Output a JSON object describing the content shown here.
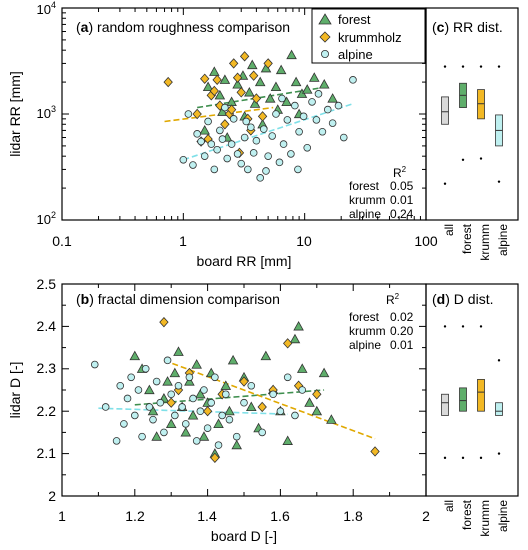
{
  "colors": {
    "forest": "#5fae6b",
    "krummholz": "#f2b824",
    "alpine": "#bff0f0",
    "all": "#d9d9d9",
    "edge": "#333333"
  },
  "top": {
    "title_letter": "a",
    "title_text": " random roughness comparison",
    "xlabel": "board RR [mm]",
    "ylabel": "lidar RR [mm]",
    "x_ticks": [
      "0.1",
      "1",
      "10",
      "100"
    ],
    "legend": [
      "forest",
      "krummholz",
      "alpine"
    ],
    "r2_title": "R",
    "r2_title_sup": "2",
    "r2_rows": [
      {
        "name": "forest",
        "value": "0.05"
      },
      {
        "name": "krumm",
        "value": "0.01"
      },
      {
        "name": "alpine",
        "value": "0.24"
      }
    ],
    "dist_letter": "c",
    "dist_text": " RR dist."
  },
  "bottom": {
    "title_letter": "b",
    "title_text": " fractal dimension comparison",
    "xlabel": "board D [-]",
    "ylabel": "lidar D [-]",
    "x_ticks": [
      "1",
      "1.2",
      "1.4",
      "1.6",
      "1.8",
      "2"
    ],
    "y_ticks": [
      "2",
      "2.1",
      "2.2",
      "2.3",
      "2.4",
      "2.5"
    ],
    "r2_title": "R",
    "r2_title_sup": "2",
    "r2_rows": [
      {
        "name": "forest",
        "value": "0.02"
      },
      {
        "name": "krumm",
        "value": "0.20"
      },
      {
        "name": "alpine",
        "value": "0.01"
      }
    ],
    "dist_letter": "d",
    "dist_text": " D dist."
  },
  "dist_categories": [
    "all",
    "forest",
    "krumm",
    "alpine"
  ],
  "chart_data": [
    {
      "type": "scatter",
      "title": "(a) random roughness comparison",
      "xlabel": "board RR [mm]",
      "ylabel": "lidar RR [mm]",
      "xscale": "log",
      "yscale": "log",
      "xlim": [
        0.1,
        100
      ],
      "ylim": [
        100,
        10000
      ],
      "legend_position": "top-right",
      "series": [
        {
          "name": "forest",
          "marker": "triangle",
          "points": [
            [
              1.6,
              1800
            ],
            [
              1.8,
              2500
            ],
            [
              2.0,
              1500
            ],
            [
              2.2,
              2100
            ],
            [
              2.5,
              1300
            ],
            [
              2.8,
              1900
            ],
            [
              3.1,
              2300
            ],
            [
              3.5,
              1600
            ],
            [
              3.9,
              1250
            ],
            [
              4.3,
              2000
            ],
            [
              4.8,
              2700
            ],
            [
              5.2,
              1400
            ],
            [
              5.8,
              1800
            ],
            [
              6.4,
              2600
            ],
            [
              7.1,
              1300
            ],
            [
              7.8,
              3600
            ],
            [
              8.5,
              2000
            ],
            [
              9.5,
              1550
            ],
            [
              10.5,
              1700
            ],
            [
              12.0,
              2200
            ],
            [
              14.5,
              1900
            ],
            [
              17.0,
              1400
            ],
            [
              2.1,
              1050
            ],
            [
              3.2,
              950
            ],
            [
              4.5,
              800
            ],
            [
              6.0,
              1100
            ],
            [
              1.5,
              700
            ],
            [
              2.3,
              600
            ],
            [
              9.0,
              1000
            ],
            [
              3.7,
              2900
            ]
          ],
          "trend": [
            [
              1.3,
              1150
            ],
            [
              13.0,
              1750
            ]
          ]
        },
        {
          "name": "krummholz",
          "marker": "diamond",
          "points": [
            [
              0.75,
              2000
            ],
            [
              1.3,
              1000
            ],
            [
              1.5,
              2150
            ],
            [
              1.6,
              580
            ],
            [
              1.7,
              1500
            ],
            [
              1.8,
              1650
            ],
            [
              1.9,
              2100
            ],
            [
              2.0,
              1200
            ],
            [
              2.2,
              800
            ],
            [
              2.4,
              1000
            ],
            [
              2.6,
              3000
            ],
            [
              2.8,
              2200
            ],
            [
              3.0,
              1600
            ],
            [
              3.2,
              3500
            ],
            [
              3.4,
              900
            ],
            [
              3.6,
              700
            ],
            [
              3.8,
              2300
            ],
            [
              4.0,
              1400
            ],
            [
              4.5,
              950
            ],
            [
              5.0,
              3000
            ],
            [
              1.4,
              550
            ],
            [
              2.9,
              430
            ],
            [
              2.5,
              1100
            ]
          ],
          "trend": [
            [
              0.7,
              850
            ],
            [
              5.5,
              1150
            ]
          ]
        },
        {
          "name": "alpine",
          "marker": "circle",
          "points": [
            [
              1.0,
              370
            ],
            [
              1.1,
              1000
            ],
            [
              1.2,
              330
            ],
            [
              1.3,
              650
            ],
            [
              1.4,
              550
            ],
            [
              1.5,
              400
            ],
            [
              1.6,
              850
            ],
            [
              1.7,
              520
            ],
            [
              1.8,
              300
            ],
            [
              1.9,
              460
            ],
            [
              2.0,
              700
            ],
            [
              2.1,
              580
            ],
            [
              2.3,
              380
            ],
            [
              2.5,
              520
            ],
            [
              2.6,
              900
            ],
            [
              2.8,
              420
            ],
            [
              3.0,
              340
            ],
            [
              3.2,
              600
            ],
            [
              3.4,
              300
            ],
            [
              3.6,
              750
            ],
            [
              3.8,
              430
            ],
            [
              4.0,
              560
            ],
            [
              4.3,
              250
            ],
            [
              4.6,
              720
            ],
            [
              5.0,
              400
            ],
            [
              5.4,
              620
            ],
            [
              5.8,
              1000
            ],
            [
              6.2,
              350
            ],
            [
              6.7,
              520
            ],
            [
              7.2,
              880
            ],
            [
              7.7,
              420
            ],
            [
              8.3,
              1200
            ],
            [
              9.0,
              680
            ],
            [
              9.8,
              950
            ],
            [
              10.5,
              480
            ],
            [
              11.5,
              1300
            ],
            [
              12.5,
              880
            ],
            [
              14.0,
              680
            ],
            [
              15.5,
              1100
            ],
            [
              17.0,
              820
            ],
            [
              19.0,
              1200
            ],
            [
              21.0,
              600
            ],
            [
              25.0,
              2100
            ],
            [
              4.8,
              290
            ],
            [
              3.3,
              850
            ],
            [
              2.2,
              1150
            ],
            [
              6.5,
              1400
            ],
            [
              8.8,
              300
            ],
            [
              13.0,
              1550
            ]
          ],
          "trend": [
            [
              1.0,
              370
            ],
            [
              25.0,
              1250
            ]
          ]
        }
      ]
    },
    {
      "type": "scatter",
      "title": "(b) fractal dimension comparison",
      "xlabel": "board D [-]",
      "ylabel": "lidar D [-]",
      "xlim": [
        1,
        2
      ],
      "ylim": [
        2,
        2.5
      ],
      "series": [
        {
          "name": "forest",
          "marker": "triangle",
          "points": [
            [
              1.2,
              2.33
            ],
            [
              1.22,
              2.3
            ],
            [
              1.24,
              2.25
            ],
            [
              1.25,
              2.2
            ],
            [
              1.26,
              2.14
            ],
            [
              1.28,
              2.23
            ],
            [
              1.29,
              2.27
            ],
            [
              1.3,
              2.17
            ],
            [
              1.31,
              2.29
            ],
            [
              1.32,
              2.34
            ],
            [
              1.33,
              2.21
            ],
            [
              1.34,
              2.15
            ],
            [
              1.35,
              2.27
            ],
            [
              1.36,
              2.19
            ],
            [
              1.37,
              2.31
            ],
            [
              1.38,
              2.24
            ],
            [
              1.39,
              2.14
            ],
            [
              1.4,
              2.22
            ],
            [
              1.41,
              2.29
            ],
            [
              1.42,
              2.1
            ],
            [
              1.43,
              2.17
            ],
            [
              1.45,
              2.26
            ],
            [
              1.46,
              2.2
            ],
            [
              1.47,
              2.32
            ],
            [
              1.48,
              2.12
            ],
            [
              1.5,
              2.28
            ],
            [
              1.52,
              2.21
            ],
            [
              1.54,
              2.16
            ],
            [
              1.56,
              2.33
            ],
            [
              1.58,
              2.25
            ],
            [
              1.6,
              2.2
            ],
            [
              1.62,
              2.13
            ],
            [
              1.64,
              2.37
            ],
            [
              1.65,
              2.4
            ],
            [
              1.66,
              2.3
            ],
            [
              1.68,
              2.22
            ],
            [
              1.7,
              2.2
            ],
            [
              1.72,
              2.29
            ],
            [
              1.74,
              2.18
            ]
          ],
          "trend": [
            [
              1.2,
              2.215
            ],
            [
              1.72,
              2.25
            ]
          ]
        },
        {
          "name": "krummholz",
          "marker": "diamond",
          "points": [
            [
              1.28,
              2.41
            ],
            [
              1.3,
              2.22
            ],
            [
              1.32,
              2.25
            ],
            [
              1.35,
              2.29
            ],
            [
              1.4,
              2.2
            ],
            [
              1.42,
              2.09
            ],
            [
              1.44,
              2.24
            ],
            [
              1.5,
              2.27
            ],
            [
              1.55,
              2.21
            ],
            [
              1.58,
              2.25
            ],
            [
              1.62,
              2.36
            ],
            [
              1.65,
              2.26
            ],
            [
              1.7,
              2.24
            ],
            [
              1.86,
              2.105
            ]
          ],
          "trend": [
            [
              1.28,
              2.32
            ],
            [
              1.86,
              2.135
            ]
          ]
        },
        {
          "name": "alpine",
          "marker": "circle",
          "points": [
            [
              1.09,
              2.31
            ],
            [
              1.12,
              2.21
            ],
            [
              1.15,
              2.13
            ],
            [
              1.16,
              2.26
            ],
            [
              1.17,
              2.17
            ],
            [
              1.18,
              2.23
            ],
            [
              1.19,
              2.28
            ],
            [
              1.2,
              2.19
            ],
            [
              1.21,
              2.25
            ],
            [
              1.22,
              2.14
            ],
            [
              1.23,
              2.3
            ],
            [
              1.24,
              2.21
            ],
            [
              1.25,
              2.18
            ],
            [
              1.26,
              2.27
            ],
            [
              1.27,
              2.22
            ],
            [
              1.28,
              2.15
            ],
            [
              1.29,
              2.32
            ],
            [
              1.3,
              2.24
            ],
            [
              1.31,
              2.19
            ],
            [
              1.32,
              2.26
            ],
            [
              1.33,
              2.21
            ],
            [
              1.34,
              2.17
            ],
            [
              1.35,
              2.28
            ],
            [
              1.36,
              2.23
            ],
            [
              1.37,
              2.13
            ],
            [
              1.38,
              2.2
            ],
            [
              1.39,
              2.25
            ],
            [
              1.4,
              2.16
            ],
            [
              1.41,
              2.22
            ],
            [
              1.42,
              2.28
            ],
            [
              1.43,
              2.12
            ],
            [
              1.44,
              2.19
            ],
            [
              1.45,
              2.24
            ],
            [
              1.46,
              2.18
            ],
            [
              1.48,
              2.14
            ],
            [
              1.5,
              2.22
            ],
            [
              1.52,
              2.26
            ],
            [
              1.55,
              2.15
            ],
            [
              1.58,
              2.24
            ],
            [
              1.6,
              2.2
            ],
            [
              1.62,
              2.28
            ],
            [
              1.64,
              2.19
            ],
            [
              1.66,
              2.25
            ]
          ],
          "trend": [
            [
              1.1,
              2.207
            ],
            [
              1.62,
              2.193
            ]
          ]
        }
      ]
    },
    {
      "type": "box",
      "title": "(c) RR dist.",
      "categories": [
        "all",
        "forest",
        "krumm",
        "alpine"
      ],
      "yscale": "log",
      "ylim": [
        100,
        10000
      ],
      "boxes": [
        {
          "q1": 800,
          "median": 1050,
          "q3": 1450,
          "whisker_low": 220,
          "whisker_high": 2800
        },
        {
          "q1": 1150,
          "median": 1500,
          "q3": 1950,
          "whisker_low": 370,
          "whisker_high": 2800
        },
        {
          "q1": 900,
          "median": 1250,
          "q3": 1700,
          "whisker_low": 380,
          "whisker_high": 2800
        },
        {
          "q1": 500,
          "median": 700,
          "q3": 980,
          "whisker_low": 230,
          "whisker_high": 2800
        }
      ]
    },
    {
      "type": "box",
      "title": "(d) D dist.",
      "categories": [
        "all",
        "forest",
        "krumm",
        "alpine"
      ],
      "ylim": [
        2,
        2.5
      ],
      "boxes": [
        {
          "q1": 2.19,
          "median": 2.22,
          "q3": 2.24,
          "whisker_low": 2.09,
          "whisker_high": 2.4
        },
        {
          "q1": 2.2,
          "median": 2.225,
          "q3": 2.255,
          "whisker_low": 2.09,
          "whisker_high": 2.4
        },
        {
          "q1": 2.2,
          "median": 2.245,
          "q3": 2.275,
          "whisker_low": 2.09,
          "whisker_high": 2.4
        },
        {
          "q1": 2.19,
          "median": 2.2,
          "q3": 2.22,
          "whisker_low": 2.1,
          "whisker_high": 2.32
        }
      ]
    }
  ]
}
